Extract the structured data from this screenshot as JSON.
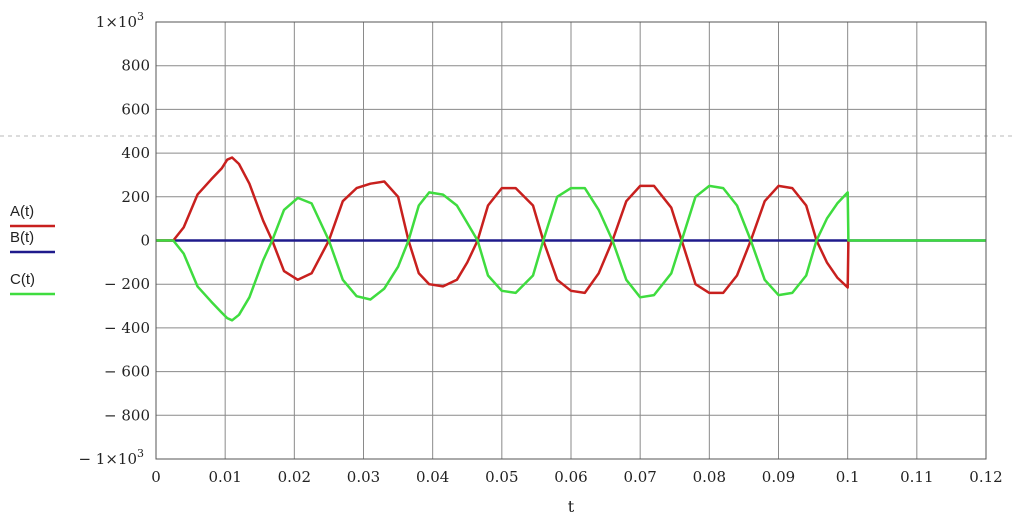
{
  "chart_data": {
    "type": "line",
    "xlabel": "t",
    "ylabel": "",
    "xlim": [
      0,
      0.12
    ],
    "ylim": [
      -1000,
      1000
    ],
    "grid": true,
    "x_ticks": [
      "0",
      "0.01",
      "0.02",
      "0.03",
      "0.04",
      "0.05",
      "0.06",
      "0.07",
      "0.08",
      "0.09",
      "0.1",
      "0.11",
      "0.12"
    ],
    "y_ticks": [
      {
        "value": 1000,
        "base": "1×10",
        "exp": "3"
      },
      {
        "value": 800,
        "base": "800",
        "exp": ""
      },
      {
        "value": 600,
        "base": "600",
        "exp": ""
      },
      {
        "value": 400,
        "base": "400",
        "exp": ""
      },
      {
        "value": 200,
        "base": "200",
        "exp": ""
      },
      {
        "value": 0,
        "base": "0",
        "exp": ""
      },
      {
        "value": -200,
        "base": "− 200",
        "exp": ""
      },
      {
        "value": -400,
        "base": "− 400",
        "exp": ""
      },
      {
        "value": -600,
        "base": "− 600",
        "exp": ""
      },
      {
        "value": -800,
        "base": "− 800",
        "exp": ""
      },
      {
        "value": -1000,
        "base": "− 1×10",
        "exp": "3"
      }
    ],
    "legend_placement": "left",
    "series": [
      {
        "name": "A(t)",
        "color": "#c8201e",
        "x": [
          0,
          0.0025,
          0.004,
          0.006,
          0.008,
          0.0095,
          0.0103,
          0.011,
          0.012,
          0.0135,
          0.0155,
          0.0168,
          0.0185,
          0.0205,
          0.0225,
          0.025,
          0.027,
          0.029,
          0.031,
          0.033,
          0.035,
          0.0365,
          0.038,
          0.0395,
          0.0415,
          0.0435,
          0.045,
          0.0465,
          0.048,
          0.05,
          0.052,
          0.0545,
          0.056,
          0.058,
          0.06,
          0.062,
          0.064,
          0.066,
          0.068,
          0.07,
          0.072,
          0.0745,
          0.076,
          0.078,
          0.08,
          0.082,
          0.084,
          0.086,
          0.088,
          0.09,
          0.092,
          0.094,
          0.0955,
          0.097,
          0.0985,
          0.1,
          0.1001
        ],
        "y": [
          0,
          0,
          60,
          210,
          280,
          330,
          370,
          380,
          350,
          260,
          90,
          0,
          -140,
          -180,
          -150,
          0,
          180,
          240,
          260,
          270,
          200,
          0,
          -150,
          -200,
          -210,
          -180,
          -100,
          0,
          160,
          240,
          240,
          160,
          0,
          -180,
          -230,
          -240,
          -150,
          0,
          180,
          250,
          250,
          150,
          0,
          -200,
          -240,
          -240,
          -160,
          0,
          180,
          250,
          240,
          160,
          0,
          -100,
          -170,
          -215,
          0
        ]
      },
      {
        "name": "B(t)",
        "color": "#1f1a8c",
        "x": [
          0,
          0.1,
          0.12
        ],
        "y": [
          0,
          0,
          0
        ]
      },
      {
        "name": "C(t)",
        "color": "#3fdc3f",
        "x": [
          0,
          0.0025,
          0.004,
          0.006,
          0.008,
          0.0095,
          0.0103,
          0.011,
          0.012,
          0.0135,
          0.0155,
          0.0168,
          0.0185,
          0.0205,
          0.0225,
          0.025,
          0.027,
          0.029,
          0.031,
          0.033,
          0.035,
          0.0365,
          0.038,
          0.0395,
          0.0415,
          0.0435,
          0.045,
          0.0465,
          0.048,
          0.05,
          0.052,
          0.0545,
          0.056,
          0.058,
          0.06,
          0.062,
          0.064,
          0.066,
          0.068,
          0.07,
          0.072,
          0.0745,
          0.076,
          0.078,
          0.08,
          0.082,
          0.084,
          0.086,
          0.088,
          0.09,
          0.092,
          0.094,
          0.0955,
          0.097,
          0.0985,
          0.1,
          0.1001,
          0.11,
          0.12
        ],
        "y": [
          0,
          0,
          -60,
          -210,
          -280,
          -330,
          -355,
          -365,
          -340,
          -260,
          -90,
          0,
          140,
          195,
          170,
          0,
          -180,
          -255,
          -270,
          -220,
          -120,
          0,
          160,
          220,
          210,
          160,
          80,
          0,
          -160,
          -230,
          -240,
          -160,
          0,
          200,
          240,
          240,
          140,
          0,
          -180,
          -260,
          -250,
          -150,
          0,
          200,
          250,
          240,
          160,
          0,
          -180,
          -250,
          -240,
          -160,
          0,
          100,
          170,
          220,
          0,
          0,
          0
        ]
      }
    ]
  }
}
